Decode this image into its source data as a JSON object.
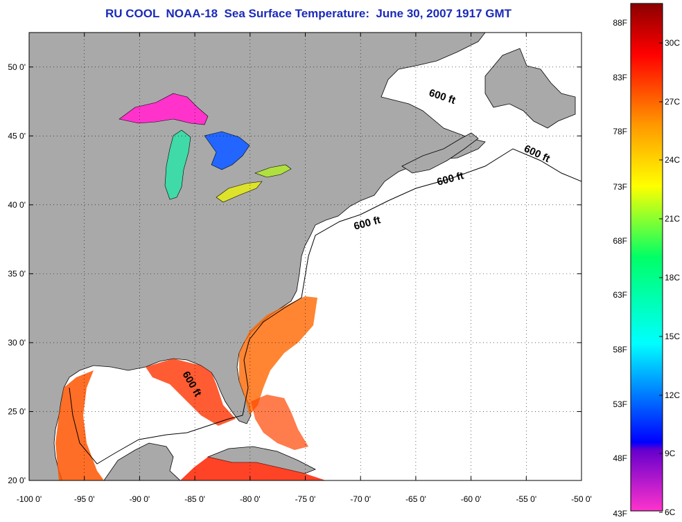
{
  "title": "RU COOL  NOAA-18  Sea Surface Temperature:  June 30, 2007 1917 GMT",
  "map": {
    "lon_range": [
      -100,
      -50
    ],
    "lat_range": [
      20,
      52.5
    ],
    "lon_labels": [
      "-100 0'",
      "-95 0'",
      "-90 0'",
      "-85 0'",
      "-80 0'",
      "-75 0'",
      "-70 0'",
      "-65 0'",
      "-60 0'",
      "-55 0'",
      "-50 0'"
    ],
    "lat_labels": [
      "20 0'",
      "25 0'",
      "30 0'",
      "35 0'",
      "40 0'",
      "45 0'",
      "50 0'"
    ],
    "contour_labels": [
      "600 ft",
      "600 ft",
      "600 ft",
      "600 ft",
      "600 ft"
    ],
    "land_color": "#a9a9a9",
    "ocean_color": "#ffffff"
  },
  "colorbar": {
    "fahrenheit_labels": [
      "88F",
      "83F",
      "78F",
      "73F",
      "68F",
      "63F",
      "58F",
      "53F",
      "48F",
      "43F"
    ],
    "celsius_labels": [
      "30C",
      "27C",
      "24C",
      "21C",
      "18C",
      "15C",
      "12C",
      "9C",
      "6C"
    ],
    "range_c": [
      6,
      32
    ],
    "colors": [
      "#ff33cc",
      "#0000ff",
      "#00ffff",
      "#00ff00",
      "#ffff00",
      "#ff8800",
      "#ff0000",
      "#8b0000"
    ]
  }
}
